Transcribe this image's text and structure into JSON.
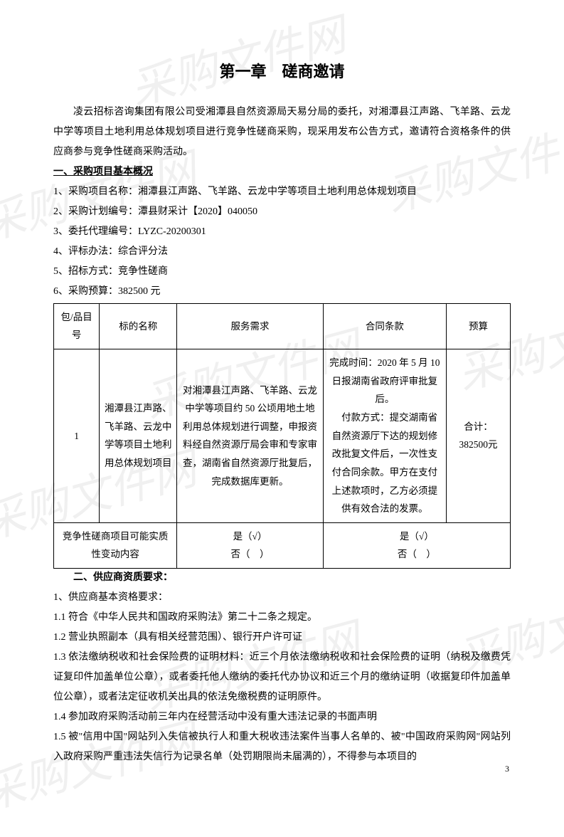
{
  "watermark_text": "采购文件网",
  "chapter_title": "第一章　磋商邀请",
  "intro": "凌云招标咨询集团有限公司受湘潭县自然资源局天易分局的委托，对湘潭县江声路、飞羊路、云龙中学等项目土地利用总体规划项目进行竞争性磋商采购，现采用发布公告方式，邀请符合资格条件的供应商参与竞争性磋商采购活动。",
  "section1_heading": "一、采购项目基本概况",
  "items": {
    "i1": "1、采购项目名称：湘潭县江声路、飞羊路、云龙中学等项目土地利用总体规划项目",
    "i2": "2、采购计划编号：潭县财采计【2020】040050",
    "i3": "3、委托代理编号：LYZC-20200301",
    "i4": "4、评标办法：综合评分法",
    "i5": "5、招标方式：竞争性磋商",
    "i6": "6、采购预算：382500 元"
  },
  "table": {
    "headers": {
      "h1": "包/品目号",
      "h2": "标的名称",
      "h3": "服务需求",
      "h4": "合同条款",
      "h5": "预算"
    },
    "row1": {
      "c1": "1",
      "c2": "湘潭县江声路、飞羊路、云龙中学等项目土地利用总体规划项目",
      "c3": "对湘潭县江声路、飞羊路、云龙中学等项目约 50 公顷用地土地利用总体规划进行调整，申报资料经自然资源厅局会审和专家审查，湖南省自然资源厅批复后，完成数据库更新。",
      "c4": "完成时间：2020 年 5 月 10日报湖南省政府评审批复后。\n　付款方式：提交湖南省自然资源厅下达的规划修改批复文件后，一次性支付合同余款。甲方在支付上述款项时，乙方必须提供有效合法的发票。",
      "c5": "合计：382500元"
    },
    "row2": {
      "label": "竞争性磋商项目可能实质性变动内容",
      "yes": "是（√）",
      "no": "否（　）",
      "yes2": "是（√）",
      "no2": "否（　）"
    }
  },
  "section2_heading": "二、供应商资质要求：",
  "req": {
    "r1": "1、供应商基本资格要求：",
    "r1_1": "1.1 符合《中华人民共和国政府采购法》第二十二条之规定。",
    "r1_2": "1.2 营业执照副本（具有相关经营范围）、银行开户许可证",
    "r1_3": "1.3 依法缴纳税收和社会保险费的证明材料：近三个月依法缴纳税收和社会保险费的证明（纳税及缴费凭证复印件加盖单位公章），或者委托他人缴纳的委托代办协议和近三个月的缴纳证明（收据复印件加盖单位公章），或者法定征收机关出具的依法免缴税费的证明原件。",
    "r1_4": "1.4 参加政府采购活动前三年内在经营活动中没有重大违法记录的书面声明",
    "r1_5": "1.5 被\"信用中国\"网站列入失信被执行人和重大税收违法案件当事人名单的、被\"中国政府采购网\"网站列入政府采购严重违法失信行为记录名单（处罚期限尚未届满的），不得参与本项目的"
  },
  "page_number": "3"
}
